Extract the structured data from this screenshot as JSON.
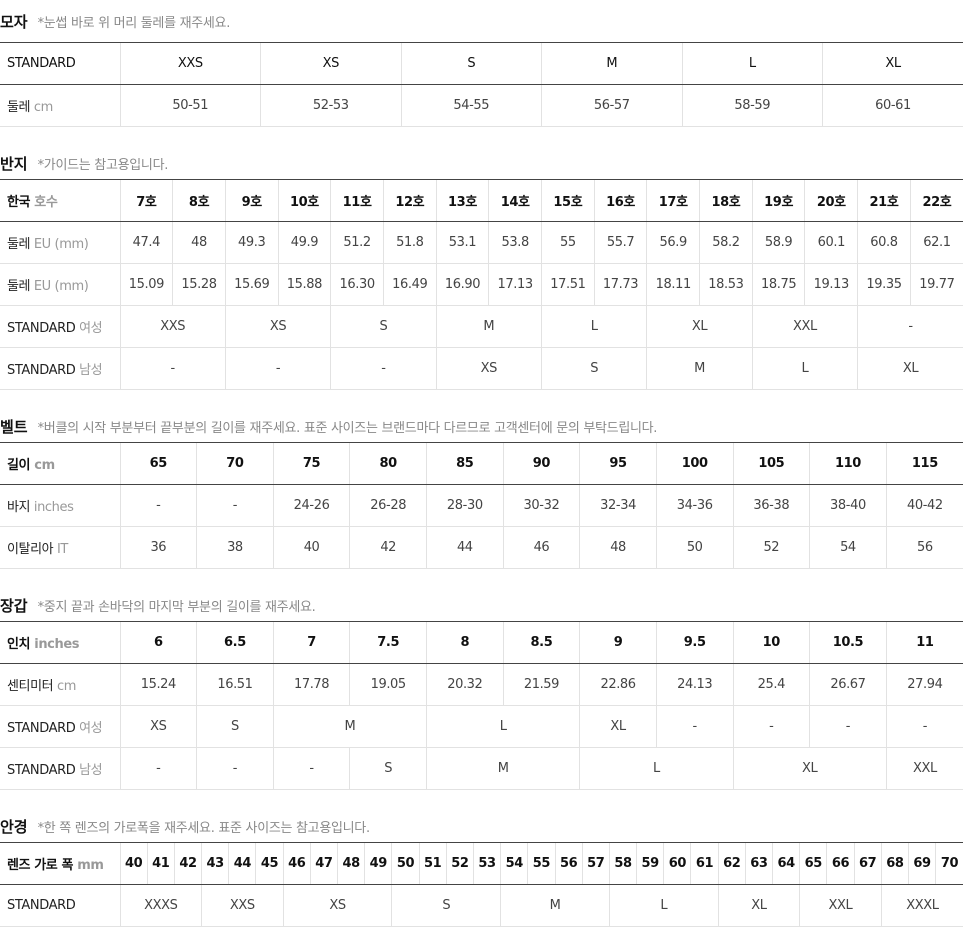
{
  "sections": [
    {
      "title": "모자",
      "note": "*눈썹 바로 위 머리 둘레를 재주세요.",
      "rows": [
        {
          "label": "STANDARD",
          "cells": [
            "XXS",
            "XS",
            "S",
            "M",
            "L",
            "XL"
          ]
        },
        {
          "label": "둘레",
          "unit": "cm",
          "cells": [
            "50-51",
            "52-53",
            "54-55",
            "56-57",
            "58-59",
            "60-61"
          ]
        }
      ]
    },
    {
      "title": "반지",
      "note": "*가이드는 참고용입니다.",
      "rows": [
        {
          "label": "한국",
          "unit": "호수",
          "cells": [
            "7호",
            "8호",
            "9호",
            "10호",
            "11호",
            "12호",
            "13호",
            "14호",
            "15호",
            "16호",
            "17호",
            "18호",
            "19호",
            "20호",
            "21호",
            "22호"
          ]
        },
        {
          "label": "둘레",
          "unit": "EU (mm)",
          "cells": [
            "47.4",
            "48",
            "49.3",
            "49.9",
            "51.2",
            "51.8",
            "53.1",
            "53.8",
            "55",
            "55.7",
            "56.9",
            "58.2",
            "58.9",
            "60.1",
            "60.8",
            "62.1"
          ]
        },
        {
          "label": "둘레",
          "unit": "EU (mm)",
          "cells": [
            "15.09",
            "15.28",
            "15.69",
            "15.88",
            "16.30",
            "16.49",
            "16.90",
            "17.13",
            "17.51",
            "17.73",
            "18.11",
            "18.53",
            "18.75",
            "19.13",
            "19.35",
            "19.77"
          ]
        },
        {
          "label": "STANDARD",
          "unit": "여성",
          "cells": [
            "XXS",
            "XS",
            "S",
            "M",
            "L",
            "XL",
            "XXL",
            "-"
          ]
        },
        {
          "label": "STANDARD",
          "unit": "남성",
          "cells": [
            "-",
            "-",
            "-",
            "XS",
            "S",
            "M",
            "L",
            "XL"
          ]
        }
      ]
    },
    {
      "title": "벨트",
      "note": "*버클의 시작 부분부터 끝부분의 길이를 재주세요. 표준 사이즈는 브랜드마다 다르므로 고객센터에 문의 부탁드립니다.",
      "rows": [
        {
          "label": "길이",
          "unit": "cm",
          "cells": [
            "65",
            "70",
            "75",
            "80",
            "85",
            "90",
            "95",
            "100",
            "105",
            "110",
            "115"
          ]
        },
        {
          "label": "바지",
          "unit": "inches",
          "cells": [
            "-",
            "-",
            "24-26",
            "26-28",
            "28-30",
            "30-32",
            "32-34",
            "34-36",
            "36-38",
            "38-40",
            "40-42"
          ]
        },
        {
          "label": "이탈리아",
          "unit": "IT",
          "cells": [
            "36",
            "38",
            "40",
            "42",
            "44",
            "46",
            "48",
            "50",
            "52",
            "54",
            "56"
          ]
        }
      ]
    },
    {
      "title": "장갑",
      "note": "*중지 끝과 손바닥의 마지막 부분의 길이를 재주세요.",
      "rows": [
        {
          "label": "인치",
          "unit": "inches",
          "cells": [
            "6",
            "6.5",
            "7",
            "7.5",
            "8",
            "8.5",
            "9",
            "9.5",
            "10",
            "10.5",
            "11"
          ]
        },
        {
          "label": "센티미터",
          "unit": "cm",
          "cells": [
            "15.24",
            "16.51",
            "17.78",
            "19.05",
            "20.32",
            "21.59",
            "22.86",
            "24.13",
            "25.4",
            "26.67",
            "27.94"
          ]
        },
        {
          "label": "STANDARD",
          "unit": "여성",
          "cells": [
            "XS",
            "S",
            "M",
            "L",
            "XL",
            "-",
            "-",
            "-",
            "-"
          ]
        },
        {
          "label": "STANDARD",
          "unit": "남성",
          "cells": [
            "-",
            "-",
            "-",
            "S",
            "M",
            "L",
            "XL",
            "XXL"
          ]
        }
      ]
    },
    {
      "title": "안경",
      "note": "*한 쪽 렌즈의 가로폭을 재주세요. 표준 사이즈는 참고용입니다.",
      "rows": [
        {
          "label": "렌즈 가로 폭",
          "unit": "mm",
          "cells": [
            "40",
            "41",
            "42",
            "43",
            "44",
            "45",
            "46",
            "47",
            "48",
            "49",
            "50",
            "51",
            "52",
            "53",
            "54",
            "55",
            "56",
            "57",
            "58",
            "59",
            "60",
            "61",
            "62",
            "63",
            "64",
            "65",
            "66",
            "67",
            "68",
            "69",
            "70"
          ]
        },
        {
          "label": "STANDARD",
          "cells": [
            "XXXS",
            "XXS",
            "XS",
            "S",
            "M",
            "L",
            "XL",
            "XXL",
            "XXXL"
          ]
        }
      ]
    }
  ]
}
